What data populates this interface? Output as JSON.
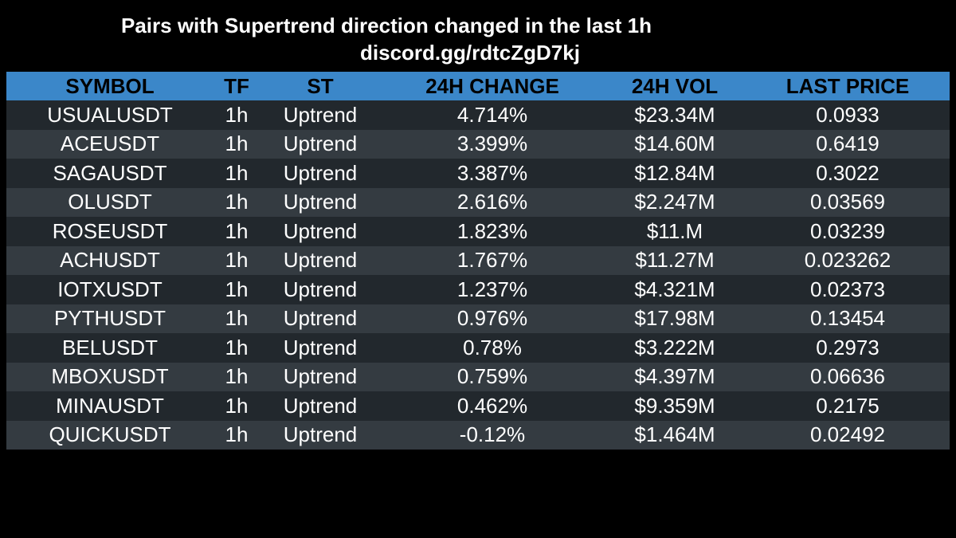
{
  "header": {
    "title": "Pairs with Supertrend direction changed in the last 1h",
    "subtitle": "discord.gg/rdtcZgD7kj"
  },
  "table": {
    "columns": [
      "SYMBOL",
      "TF",
      "ST",
      "24H CHANGE",
      "24H VOL",
      "LAST PRICE"
    ],
    "rows": [
      [
        "USUALUSDT",
        "1h",
        "Uptrend",
        "4.714%",
        "$23.34M",
        "0.0933"
      ],
      [
        "ACEUSDT",
        "1h",
        "Uptrend",
        "3.399%",
        "$14.60M",
        "0.6419"
      ],
      [
        "SAGAUSDT",
        "1h",
        "Uptrend",
        "3.387%",
        "$12.84M",
        "0.3022"
      ],
      [
        "OLUSDT",
        "1h",
        "Uptrend",
        "2.616%",
        "$2.247M",
        "0.03569"
      ],
      [
        "ROSEUSDT",
        "1h",
        "Uptrend",
        "1.823%",
        "$11.M",
        "0.03239"
      ],
      [
        "ACHUSDT",
        "1h",
        "Uptrend",
        "1.767%",
        "$11.27M",
        "0.023262"
      ],
      [
        "IOTXUSDT",
        "1h",
        "Uptrend",
        "1.237%",
        "$4.321M",
        "0.02373"
      ],
      [
        "PYTHUSDT",
        "1h",
        "Uptrend",
        "0.976%",
        "$17.98M",
        "0.13454"
      ],
      [
        "BELUSDT",
        "1h",
        "Uptrend",
        "0.78%",
        "$3.222M",
        "0.2973"
      ],
      [
        "MBOXUSDT",
        "1h",
        "Uptrend",
        "0.759%",
        "$4.397M",
        "0.06636"
      ],
      [
        "MINAUSDT",
        "1h",
        "Uptrend",
        "0.462%",
        "$9.359M",
        "0.2175"
      ],
      [
        "QUICKUSDT",
        "1h",
        "Uptrend",
        "-0.12%",
        "$1.464M",
        "0.02492"
      ]
    ]
  },
  "colors": {
    "background": "#000000",
    "header_bar": "#3b87c9",
    "row_dark": "#22282d",
    "row_light": "#343b41",
    "header_text": "#000000",
    "cell_text": "#ffffff"
  }
}
